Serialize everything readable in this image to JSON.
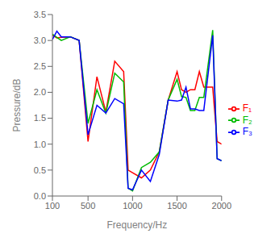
{
  "chart_data": {
    "type": "line",
    "xlabel": "Frequency/Hz",
    "ylabel": "Pressure/dB",
    "x": [
      100,
      150,
      200,
      300,
      400,
      500,
      600,
      700,
      800,
      900,
      950,
      1000,
      1100,
      1200,
      1300,
      1400,
      1500,
      1550,
      1600,
      1650,
      1700,
      1750,
      1800,
      1900,
      1950,
      2000
    ],
    "series": [
      {
        "name": "F₁",
        "color": "#ff0000",
        "values": [
          3.1,
          3.05,
          3.06,
          3.07,
          3.0,
          1.05,
          2.3,
          1.62,
          2.6,
          2.4,
          0.5,
          0.45,
          0.35,
          0.5,
          0.85,
          1.85,
          2.4,
          2.05,
          2.0,
          2.05,
          2.05,
          2.4,
          2.1,
          2.1,
          1.05,
          1.0
        ]
      },
      {
        "name": "F₂",
        "color": "#00bb00",
        "values": [
          3.12,
          3.06,
          3.0,
          3.07,
          3.0,
          1.4,
          2.05,
          1.6,
          2.37,
          2.2,
          0.15,
          0.1,
          0.55,
          0.65,
          0.85,
          1.85,
          2.25,
          1.92,
          1.9,
          1.65,
          1.65,
          1.9,
          1.9,
          3.2,
          0.72,
          0.68
        ]
      },
      {
        "name": "F₃",
        "color": "#0000ff",
        "values": [
          3.02,
          3.18,
          3.07,
          3.07,
          3.0,
          1.18,
          1.75,
          1.6,
          1.88,
          1.78,
          0.15,
          0.12,
          0.5,
          0.28,
          0.8,
          1.85,
          1.83,
          1.85,
          2.1,
          1.68,
          1.68,
          1.65,
          1.65,
          3.1,
          0.72,
          0.68
        ]
      }
    ],
    "xlim": [
      100,
      2000
    ],
    "xticks": [
      100,
      500,
      1000,
      1500,
      2000
    ],
    "ylim": [
      0,
      3.5
    ],
    "yticks": [
      {
        "value": 0,
        "label": "0.0"
      },
      0.5,
      {
        "value": 1.0,
        "label": "1.0"
      },
      1.5,
      {
        "value": 2.0,
        "label": "2.0"
      },
      2.5,
      {
        "value": 3.0,
        "label": "3.0"
      },
      3.5
    ],
    "grid": false,
    "legend": "right"
  }
}
